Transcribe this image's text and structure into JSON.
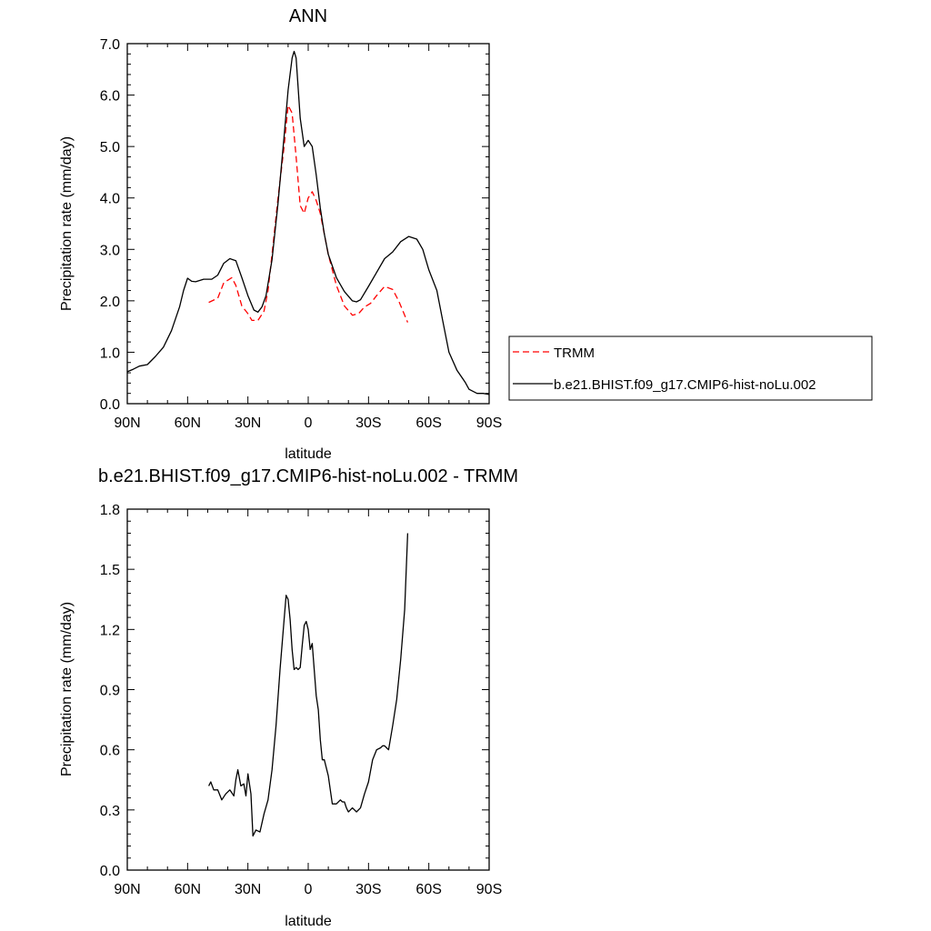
{
  "chart_data": [
    {
      "type": "line",
      "title": "ANN",
      "xlabel": "latitude",
      "ylabel": "Precipitation rate (mm/day)",
      "xlim": [
        90,
        -90
      ],
      "ylim": [
        0,
        7
      ],
      "xticks": [
        90,
        60,
        30,
        0,
        -30,
        -60,
        -90
      ],
      "xtick_labels": [
        "90N",
        "60N",
        "30N",
        "0",
        "30S",
        "60S",
        "90S"
      ],
      "yticks": [
        0,
        1,
        2,
        3,
        4,
        5,
        6,
        7
      ],
      "ytick_labels": [
        "0.0",
        "1.0",
        "2.0",
        "3.0",
        "4.0",
        "5.0",
        "6.0",
        "7.0"
      ],
      "grid": false,
      "legend_position": "right",
      "series": [
        {
          "name": "TRMM",
          "color": "#ff0000",
          "dash": true,
          "x": [
            49.5,
            45,
            42,
            38,
            36,
            33,
            30,
            28,
            25,
            22,
            20,
            18,
            15,
            12,
            10,
            8,
            6,
            4,
            2,
            0,
            -2,
            -4,
            -6,
            -8,
            -10,
            -14,
            -18,
            -22,
            -25,
            -28,
            -31,
            -34,
            -38,
            -42,
            -45,
            -49.5
          ],
          "y": [
            1.97,
            2.05,
            2.35,
            2.45,
            2.3,
            1.9,
            1.75,
            1.62,
            1.62,
            1.8,
            2.2,
            2.9,
            4.0,
            5.0,
            5.8,
            5.65,
            4.8,
            3.85,
            3.7,
            4.0,
            4.12,
            3.95,
            3.7,
            3.3,
            2.9,
            2.3,
            1.9,
            1.72,
            1.75,
            1.88,
            1.95,
            2.1,
            2.28,
            2.22,
            2.0,
            1.58
          ]
        },
        {
          "name": "b.e21.BHIST.f09_g17.CMIP6-hist-noLu.002",
          "color": "#000000",
          "dash": false,
          "x": [
            90,
            87,
            84,
            80,
            76,
            72,
            68,
            64,
            62,
            60,
            58,
            56,
            52,
            48,
            45,
            42,
            39,
            36,
            33,
            30,
            27,
            25,
            23,
            21,
            18,
            15,
            12,
            10,
            8,
            7,
            6,
            4,
            2,
            0,
            -2,
            -4,
            -6,
            -8,
            -10,
            -14,
            -18,
            -22,
            -24,
            -26,
            -30,
            -34,
            -38,
            -42,
            -46,
            -50,
            -54,
            -57,
            -60,
            -64,
            -67,
            -70,
            -74,
            -78,
            -80,
            -84,
            -87,
            -90
          ],
          "y": [
            0.62,
            0.67,
            0.73,
            0.76,
            0.92,
            1.1,
            1.42,
            1.88,
            2.2,
            2.44,
            2.38,
            2.37,
            2.42,
            2.42,
            2.5,
            2.73,
            2.82,
            2.78,
            2.45,
            2.1,
            1.82,
            1.78,
            1.88,
            2.1,
            2.8,
            3.9,
            5.2,
            6.1,
            6.72,
            6.85,
            6.72,
            5.55,
            5.0,
            5.12,
            5.0,
            4.45,
            3.8,
            3.3,
            2.9,
            2.45,
            2.18,
            2.0,
            1.98,
            2.02,
            2.28,
            2.55,
            2.82,
            2.95,
            3.15,
            3.25,
            3.2,
            3.0,
            2.6,
            2.2,
            1.6,
            1.0,
            0.65,
            0.42,
            0.28,
            0.2,
            0.2,
            0.18
          ]
        }
      ]
    },
    {
      "type": "line",
      "title": "b.e21.BHIST.f09_g17.CMIP6-hist-noLu.002 - TRMM",
      "xlabel": "latitude",
      "ylabel": "Precipitation rate (mm/day)",
      "xlim": [
        90,
        -90
      ],
      "ylim": [
        0,
        1.8
      ],
      "xticks": [
        90,
        60,
        30,
        0,
        -30,
        -60,
        -90
      ],
      "xtick_labels": [
        "90N",
        "60N",
        "30N",
        "0",
        "30S",
        "60S",
        "90S"
      ],
      "yticks": [
        0,
        0.3,
        0.6,
        0.9,
        1.2,
        1.5,
        1.8
      ],
      "ytick_labels": [
        "0.0",
        "0.3",
        "0.6",
        "0.9",
        "1.2",
        "1.5",
        "1.8"
      ],
      "grid": false,
      "series": [
        {
          "color": "#000000",
          "dash": false,
          "x": [
            49.5,
            48.5,
            47,
            45,
            43,
            41,
            39,
            37,
            36,
            35,
            33.5,
            32,
            31,
            30,
            28.5,
            27.5,
            26,
            24,
            22,
            20,
            18,
            16,
            14,
            12,
            11,
            10,
            9,
            8,
            7,
            6,
            5,
            4,
            3,
            2,
            1,
            0,
            -1,
            -2,
            -3,
            -4,
            -5,
            -6,
            -7,
            -8,
            -10,
            -11,
            -12,
            -14,
            -16,
            -17,
            -18,
            -19,
            -20,
            -21,
            -22,
            -23,
            -24,
            -26,
            -28,
            -30,
            -32,
            -34,
            -36,
            -37,
            -38,
            -39,
            -40,
            -42,
            -44,
            -46,
            -48,
            -49.5
          ],
          "y": [
            0.42,
            0.44,
            0.4,
            0.4,
            0.35,
            0.38,
            0.4,
            0.37,
            0.45,
            0.5,
            0.42,
            0.43,
            0.37,
            0.48,
            0.38,
            0.17,
            0.2,
            0.19,
            0.28,
            0.35,
            0.5,
            0.72,
            1.0,
            1.25,
            1.37,
            1.35,
            1.25,
            1.1,
            1.0,
            1.01,
            1.0,
            1.01,
            1.12,
            1.22,
            1.24,
            1.2,
            1.1,
            1.13,
            1.0,
            0.87,
            0.8,
            0.65,
            0.55,
            0.55,
            0.47,
            0.4,
            0.33,
            0.33,
            0.35,
            0.34,
            0.34,
            0.31,
            0.29,
            0.3,
            0.31,
            0.3,
            0.29,
            0.31,
            0.38,
            0.44,
            0.55,
            0.6,
            0.61,
            0.62,
            0.62,
            0.61,
            0.6,
            0.72,
            0.85,
            1.05,
            1.3,
            1.68
          ]
        }
      ]
    }
  ]
}
